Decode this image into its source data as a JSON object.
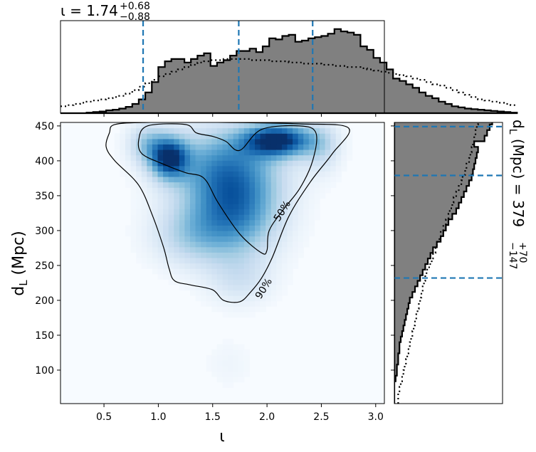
{
  "chart_data": {
    "type": "corner-plot",
    "title": {
      "symbol": "ι",
      "median": "1.74",
      "upper_err": "+0.68",
      "lower_err": "−0.88",
      "right_prefix": "d",
      "right_sub": "L",
      "right_unit": "(Mpc) = 379",
      "right_upper_err": "+70",
      "right_lower_err": "−147"
    },
    "xlabel": "ι",
    "ylabel": "d",
    "ylabel_sub": "L",
    "ylabel_unit": "(Mpc)",
    "xlim": [
      0.1,
      3.08
    ],
    "ylim": [
      52,
      455
    ],
    "xticks": [
      0.5,
      1.0,
      1.5,
      2.0,
      2.5,
      3.0
    ],
    "xtick_labels": [
      "0.5",
      "1.0",
      "1.5",
      "2.0",
      "2.5",
      "3.0"
    ],
    "yticks": [
      100,
      150,
      200,
      250,
      300,
      350,
      400,
      450
    ],
    "ytick_labels": [
      "100",
      "150",
      "200",
      "250",
      "300",
      "350",
      "400",
      "450"
    ],
    "quantiles_iota": [
      0.86,
      1.74,
      2.42
    ],
    "quantiles_dl": [
      232,
      379,
      449
    ],
    "contour_labels": [
      "50%",
      "90%"
    ],
    "colors": {
      "quantile_line": "#1f77b4",
      "hist_fill": "#808080",
      "density_dark": "#08306b",
      "density_light": "#f7fbff"
    },
    "iota_hist": {
      "edges_start": 0.1,
      "bin_width": 0.06,
      "posterior": [
        0,
        0,
        0,
        0,
        0.5,
        1.0,
        1.5,
        2.5,
        3.0,
        4.0,
        5.5,
        8.0,
        12.0,
        18.0,
        27.0,
        40.0,
        45.0,
        47.0,
        47.0,
        44.0,
        47.0,
        50.0,
        52.0,
        41.0,
        44.0,
        46.0,
        50.0,
        54.0,
        54.0,
        56.0,
        53.0,
        58.0,
        65.0,
        64.0,
        67.0,
        68.0,
        62.0,
        63.0,
        65.0,
        66.0,
        67.0,
        69.0,
        73.0,
        71.0,
        70.0,
        68.0,
        58.0,
        55.0,
        48.0,
        44.0,
        38.0,
        30.0,
        28.0,
        25.0,
        22.0,
        18.0,
        15.0,
        13.0,
        10.0,
        8.0,
        6.0,
        5.0,
        4.0,
        3.5,
        3.0,
        2.5,
        2.0,
        1.5,
        1.0,
        0.5
      ],
      "prior": [
        6,
        7,
        8,
        9,
        10,
        11,
        12,
        13,
        14,
        15,
        17,
        20,
        23,
        26,
        29,
        32,
        34,
        36,
        38,
        40,
        42,
        44,
        45,
        46,
        46,
        47,
        47,
        47,
        47,
        46,
        46,
        46,
        45,
        45,
        45,
        44,
        44,
        43,
        43,
        43,
        42,
        42,
        41,
        41,
        40,
        40,
        39,
        38,
        37,
        36,
        35,
        34,
        33,
        32,
        30,
        29,
        27,
        25,
        24,
        22,
        20,
        18,
        16,
        14,
        12,
        11,
        10,
        9,
        8,
        7
      ]
    },
    "dl_hist": {
      "edges_start": 52,
      "bin_width": 8,
      "posterior": [
        0,
        0,
        0,
        0,
        1,
        2,
        2,
        3,
        3,
        4,
        4,
        5,
        6,
        7,
        8,
        9,
        10,
        11,
        12,
        14,
        16,
        18,
        20,
        22,
        24,
        26,
        28,
        30,
        33,
        36,
        38,
        40,
        42,
        45,
        48,
        50,
        52,
        54,
        56,
        58,
        60,
        61,
        62,
        63,
        64,
        65,
        62,
        70,
        72,
        74,
        76,
        79,
        80
      ],
      "prior": [
        3,
        3,
        4,
        5,
        6,
        7,
        8,
        9,
        10,
        11,
        12,
        13,
        14,
        15,
        16,
        17,
        18,
        19,
        20,
        21,
        22,
        23,
        24,
        25,
        27,
        29,
        30,
        32,
        33,
        35,
        36,
        38,
        40,
        42,
        43,
        45,
        46,
        48,
        50,
        52,
        53,
        55,
        56,
        58,
        59,
        60,
        61,
        62,
        63,
        64,
        65,
        66,
        66
      ]
    },
    "contour_90": [
      [
        0.55,
        440
      ],
      [
        0.6,
        452
      ],
      [
        0.9,
        455
      ],
      [
        1.6,
        455
      ],
      [
        2.3,
        453
      ],
      [
        2.75,
        447
      ],
      [
        2.6,
        410
      ],
      [
        2.4,
        370
      ],
      [
        2.2,
        320
      ],
      [
        2.05,
        262
      ],
      [
        1.95,
        232
      ],
      [
        1.85,
        212
      ],
      [
        1.75,
        198
      ],
      [
        1.6,
        200
      ],
      [
        1.5,
        215
      ],
      [
        1.3,
        222
      ],
      [
        1.15,
        228
      ],
      [
        1.1,
        245
      ],
      [
        1.05,
        275
      ],
      [
        0.95,
        320
      ],
      [
        0.82,
        365
      ],
      [
        0.6,
        400
      ],
      [
        0.52,
        420
      ]
    ],
    "contour_50": [
      [
        0.82,
        430
      ],
      [
        0.9,
        450
      ],
      [
        1.25,
        452
      ],
      [
        1.35,
        440
      ],
      [
        1.5,
        435
      ],
      [
        1.62,
        428
      ],
      [
        1.75,
        415
      ],
      [
        1.95,
        445
      ],
      [
        2.3,
        450
      ],
      [
        2.45,
        440
      ],
      [
        2.42,
        400
      ],
      [
        2.3,
        360
      ],
      [
        2.15,
        330
      ],
      [
        2.02,
        300
      ],
      [
        2.0,
        272
      ],
      [
        1.95,
        268
      ],
      [
        1.75,
        295
      ],
      [
        1.55,
        340
      ],
      [
        1.42,
        375
      ],
      [
        1.25,
        383
      ],
      [
        1.05,
        395
      ],
      [
        0.85,
        410
      ]
    ],
    "density_blobs": [
      {
        "x": 1.1,
        "y": 405,
        "sx": 0.12,
        "sy": 20,
        "w": 1.0
      },
      {
        "x": 2.1,
        "y": 430,
        "sx": 0.22,
        "sy": 16,
        "w": 1.1
      },
      {
        "x": 1.7,
        "y": 330,
        "sx": 0.28,
        "sy": 45,
        "w": 0.75
      },
      {
        "x": 1.6,
        "y": 395,
        "sx": 0.35,
        "sy": 38,
        "w": 0.55
      },
      {
        "x": 1.3,
        "y": 295,
        "sx": 0.25,
        "sy": 30,
        "w": 0.3
      },
      {
        "x": 1.75,
        "y": 230,
        "sx": 0.2,
        "sy": 25,
        "w": 0.18
      },
      {
        "x": 1.65,
        "y": 110,
        "sx": 0.15,
        "sy": 25,
        "w": 0.05
      },
      {
        "x": 0.9,
        "y": 425,
        "sx": 0.12,
        "sy": 20,
        "w": 0.35
      },
      {
        "x": 2.5,
        "y": 420,
        "sx": 0.12,
        "sy": 25,
        "w": 0.25
      }
    ]
  }
}
